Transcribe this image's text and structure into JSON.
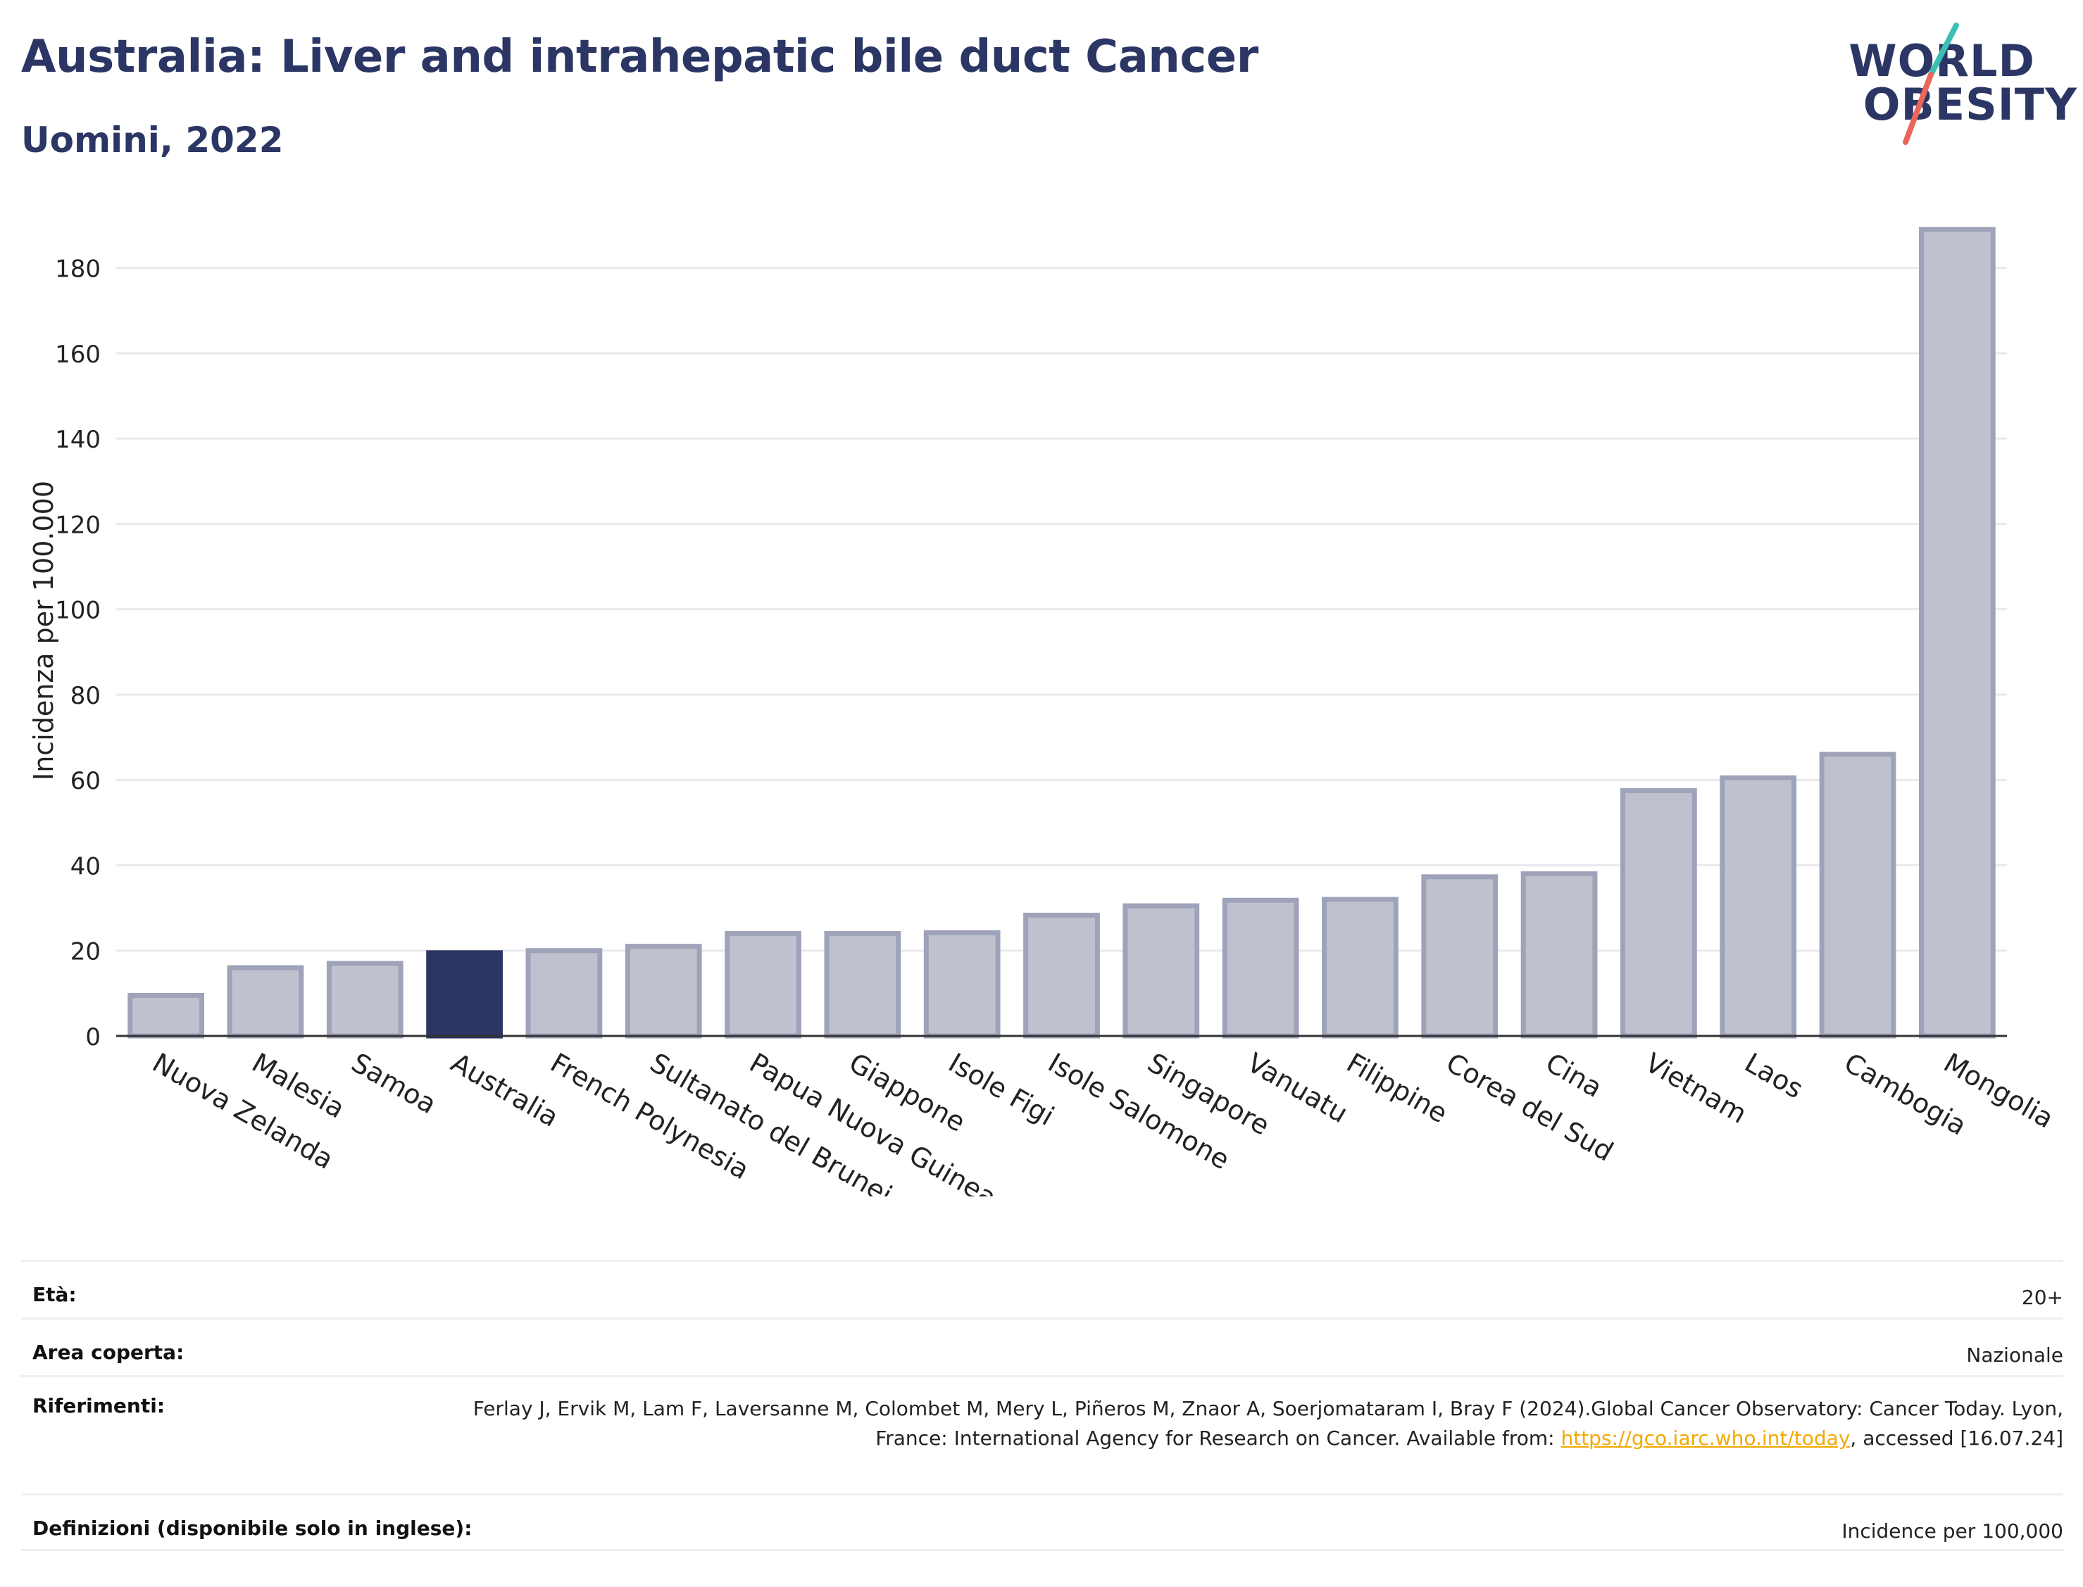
{
  "header": {
    "title": "Australia: Liver and intrahepatic bile duct Cancer",
    "subtitle": "Uomini, 2022"
  },
  "logo": {
    "line1": "WORLD",
    "line2": "OBESITY",
    "colors": {
      "text": "#2b3664",
      "slash_teal": "#3bbfb4",
      "slash_red": "#e8665a"
    }
  },
  "chart_data": {
    "type": "bar",
    "ylabel": "Incidenza per 100.000",
    "ylim": [
      0,
      190
    ],
    "yticks": [
      0,
      20,
      40,
      60,
      80,
      100,
      120,
      140,
      160,
      180
    ],
    "grid": true,
    "highlight": "Australia",
    "colors": {
      "bar": "#bfc2ce",
      "bar_edge": "#9fa3b9",
      "highlight": "#2b3664"
    },
    "categories": [
      "Nuova Zelanda",
      "Malesia",
      "Samoa",
      "Australia",
      "French Polynesia",
      "Sultanato del Brunei",
      "Papua Nuova Guinea",
      "Giappone",
      "Isole Figi",
      "Isole Salomone",
      "Singapore",
      "Vanuatu",
      "Filippine",
      "Corea del Sud",
      "Cina",
      "Vietnam",
      "Laos",
      "Cambogia",
      "Mongolia"
    ],
    "values": [
      9.5,
      16,
      17,
      19.5,
      20,
      21,
      24,
      24,
      24.2,
      28.3,
      30.5,
      31.8,
      32,
      37.3,
      38,
      57.5,
      60.5,
      66,
      189
    ]
  },
  "meta": {
    "rows": [
      {
        "label": "Età:",
        "value": "20+"
      },
      {
        "label": "Area coperta:",
        "value": "Nazionale"
      },
      {
        "label": "Riferimenti:",
        "value_pre": "Ferlay J, Ervik M, Lam F, Laversanne M, Colombet M, Mery L, Piñeros M, Znaor A, Soerjomataram I, Bray F (2024).Global Cancer Observatory: Cancer Today. Lyon, France: International Agency for Research on Cancer. Available from: ",
        "link": "https://gco.iarc.who.int/today",
        "value_post": ", accessed [16.07.24]"
      },
      {
        "label": "Definizioni (disponibile solo in inglese):",
        "value": "Incidence per 100,000"
      }
    ]
  }
}
